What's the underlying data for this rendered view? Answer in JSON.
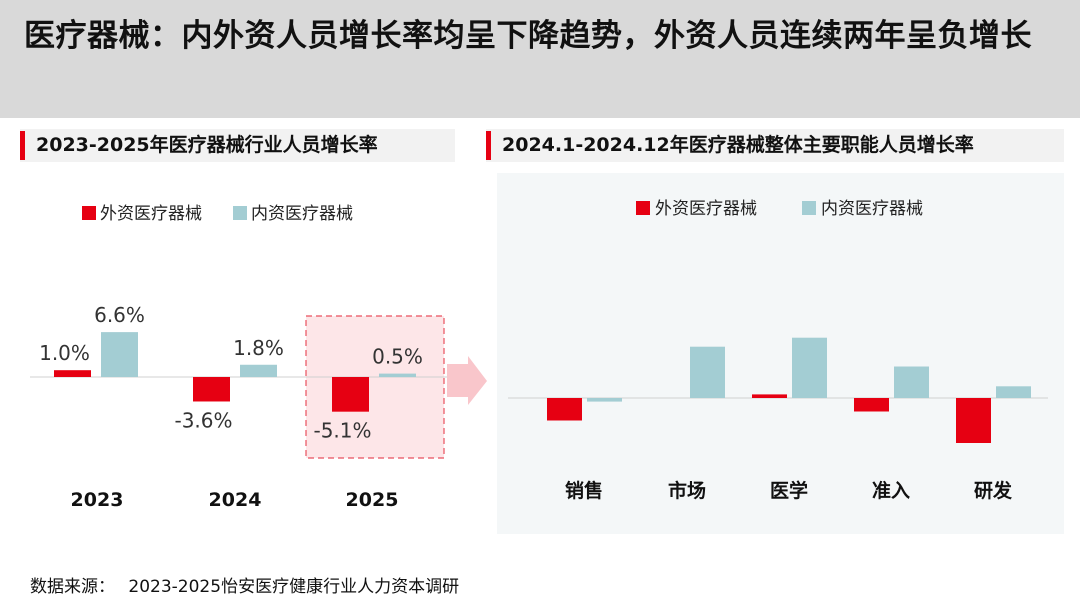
{
  "title": "医疗器械：内外资人员增长率均呈下降趋势，外资人员连续两年呈负增长",
  "source": {
    "label": "数据来源：",
    "text": "2023-2025怡安医疗健康行业人力资本调研"
  },
  "colors": {
    "foreign": "#e60012",
    "domestic": "#a3cdd3",
    "highlight_fill": "#fde6e8",
    "highlight_border": "#e9505e",
    "arrow": "#f9c6cb"
  },
  "chart_data": [
    {
      "type": "bar",
      "title": "2023-2025年医疗器械行业人员增长率",
      "categories": [
        "2023",
        "2024",
        "2025"
      ],
      "series": [
        {
          "name": "外资医疗器械",
          "values": [
            1.0,
            -3.6,
            -5.1
          ]
        },
        {
          "name": "内资医疗器械",
          "values": [
            6.6,
            1.8,
            0.5
          ]
        }
      ],
      "data_labels": {
        "外资医疗器械": [
          "1.0%",
          "-3.6%",
          "-5.1%"
        ],
        "内资医疗器械": [
          "6.6%",
          "1.8%",
          "0.5%"
        ]
      },
      "unit": "%",
      "highlight_category": "2025",
      "legend": "top",
      "grid": false
    },
    {
      "type": "bar",
      "title": "2024.1-2024.12年医疗器械整体主要职能人员增长率",
      "categories": [
        "销售",
        "市场",
        "医学",
        "准入",
        "研发"
      ],
      "series": [
        {
          "name": "外资医疗器械",
          "values": [
            -2.5,
            0.0,
            0.4,
            -1.5,
            -5.0
          ]
        },
        {
          "name": "内资医疗器械",
          "values": [
            -0.4,
            5.7,
            6.7,
            3.5,
            1.3
          ]
        }
      ],
      "unit": "%",
      "legend": "top",
      "grid": false
    }
  ]
}
